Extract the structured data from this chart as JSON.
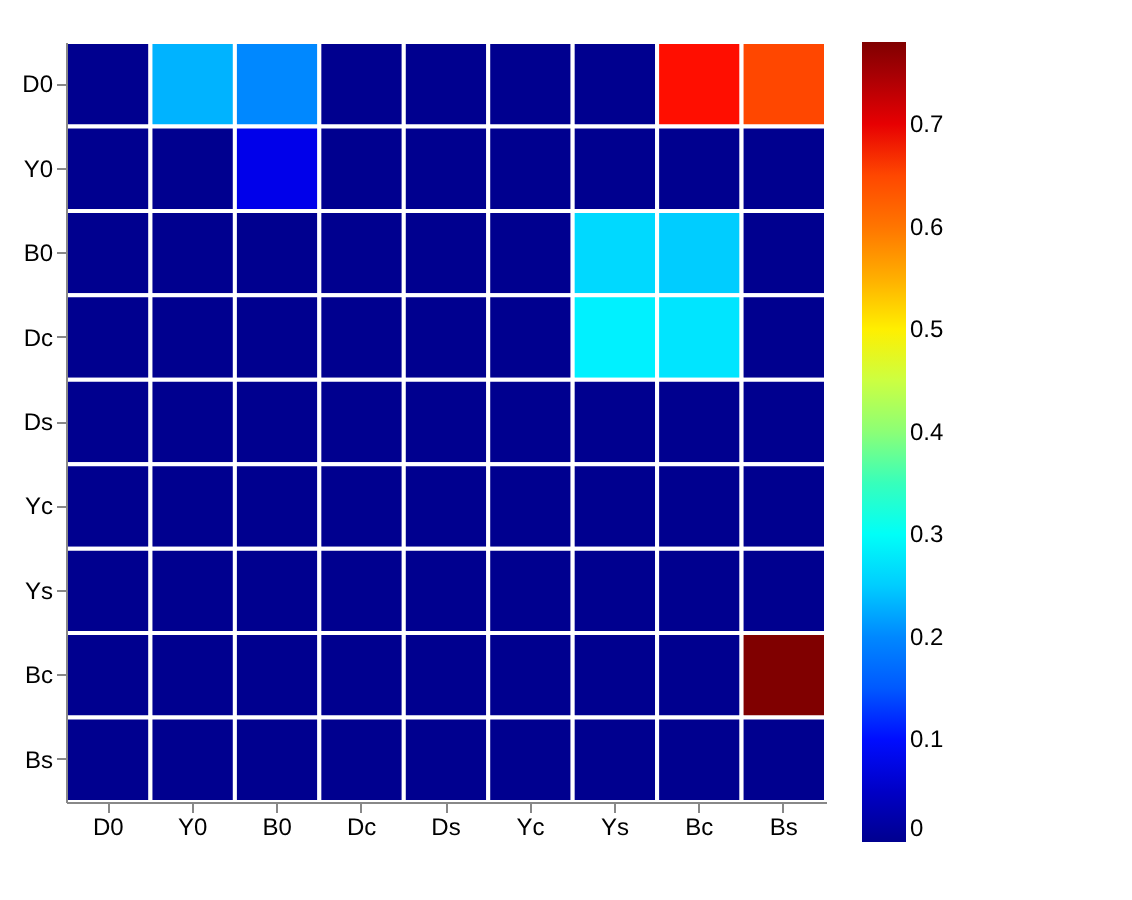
{
  "chart_data": {
    "type": "heatmap",
    "categories": [
      "D0",
      "Y0",
      "B0",
      "Dc",
      "Ds",
      "Yc",
      "Ys",
      "Bc",
      "Bs"
    ],
    "y_categories": [
      "D0",
      "Y0",
      "B0",
      "Dc",
      "Ds",
      "Yc",
      "Ys",
      "Bc",
      "Bs"
    ],
    "cells": [
      [
        0,
        0.23,
        0.2,
        0,
        0,
        0,
        0,
        0.68,
        0.65
      ],
      [
        0,
        0,
        0.08,
        0,
        0,
        0,
        0,
        0,
        0
      ],
      [
        0,
        0,
        0,
        0,
        0,
        0,
        0.26,
        0.25,
        0
      ],
      [
        0,
        0,
        0,
        0,
        0,
        0,
        0.28,
        0.27,
        0
      ],
      [
        0,
        0,
        0,
        0,
        0,
        0,
        0,
        0,
        0
      ],
      [
        0,
        0,
        0,
        0,
        0,
        0,
        0,
        0,
        0
      ],
      [
        0,
        0,
        0,
        0,
        0,
        0,
        0,
        0,
        0
      ],
      [
        0,
        0,
        0,
        0,
        0,
        0,
        0,
        0,
        0.78
      ],
      [
        0,
        0,
        0,
        0,
        0,
        0,
        0,
        0,
        0
      ]
    ],
    "clim": [
      0,
      0.78
    ],
    "cticks": [
      0,
      0.1,
      0.2,
      0.3,
      0.4,
      0.5,
      0.6,
      0.7
    ]
  }
}
